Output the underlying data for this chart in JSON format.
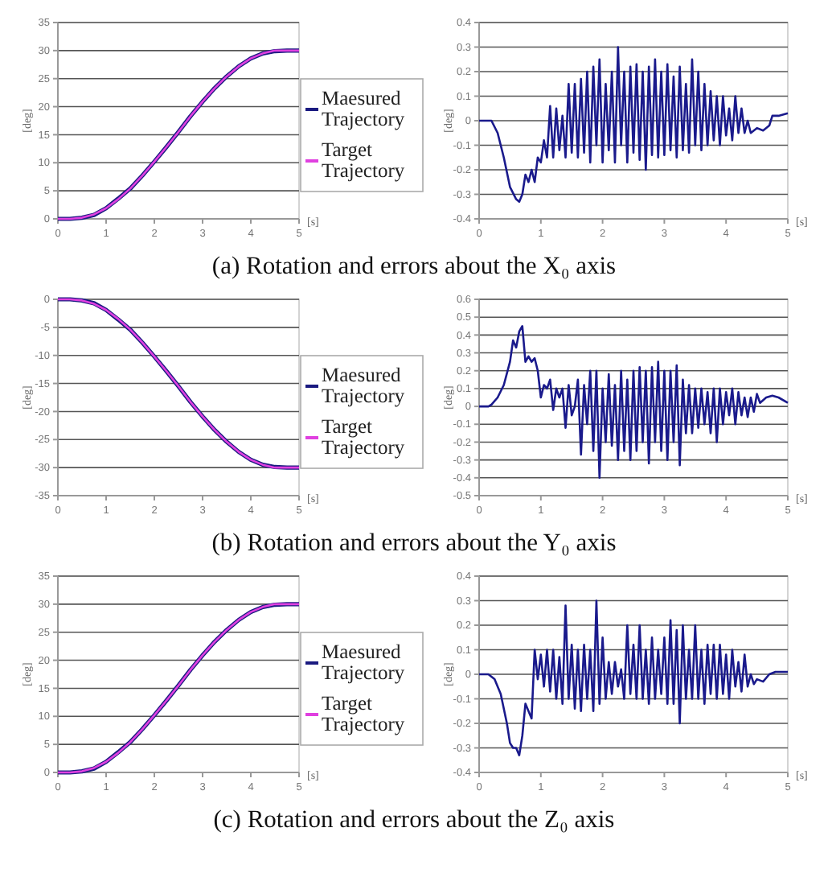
{
  "chart_data": [
    {
      "type": "line",
      "xlabel": "[s]",
      "ylabel": "[deg]",
      "xlim": [
        0,
        5
      ],
      "xticks": [
        0,
        1,
        2,
        3,
        4,
        5
      ],
      "ylim": [
        0,
        35
      ],
      "yticks": [
        0,
        5,
        10,
        15,
        20,
        25,
        30,
        35
      ],
      "grid": "y",
      "legend": "right",
      "annotations": [
        "(a) Rotation and errors about the X₀ axis"
      ],
      "x": [
        0,
        0.25,
        0.5,
        0.75,
        1,
        1.25,
        1.5,
        1.75,
        2,
        2.25,
        2.5,
        2.75,
        3,
        3.25,
        3.5,
        3.75,
        4,
        4.25,
        4.5,
        4.75,
        5
      ],
      "series": [
        {
          "name": "Maesured Trajectory",
          "color": "#1a1a80",
          "values": [
            0,
            0,
            0.2,
            0.7,
            1.9,
            3.6,
            5.4,
            7.7,
            10.2,
            12.8,
            15.5,
            18.3,
            20.9,
            23.3,
            25.4,
            27.2,
            28.6,
            29.5,
            29.9,
            30,
            30
          ]
        },
        {
          "name": "Target Trajectory",
          "color": "#e040e0",
          "values": [
            0,
            0,
            0.2,
            0.8,
            1.9,
            3.5,
            5.4,
            7.7,
            10.2,
            12.8,
            15.5,
            18.3,
            20.9,
            23.3,
            25.4,
            27.2,
            28.6,
            29.5,
            30,
            30,
            30
          ]
        }
      ]
    },
    {
      "type": "line",
      "xlabel": "[s]",
      "ylabel": "[deg]",
      "xlim": [
        0,
        5
      ],
      "xticks": [
        0,
        1,
        2,
        3,
        4,
        5
      ],
      "ylim": [
        -0.4,
        0.4
      ],
      "yticks": [
        -0.4,
        -0.3,
        -0.2,
        -0.1,
        0,
        0.1,
        0.2,
        0.3,
        0.4
      ],
      "grid": "y",
      "series": [
        {
          "color": "#1a1a8c",
          "x": [
            0,
            0.2,
            0.3,
            0.4,
            0.5,
            0.6,
            0.65,
            0.7,
            0.75,
            0.8,
            0.85,
            0.9,
            0.95,
            1,
            1.05,
            1.1,
            1.15,
            1.2,
            1.25,
            1.3,
            1.35,
            1.4,
            1.45,
            1.5,
            1.55,
            1.6,
            1.65,
            1.7,
            1.75,
            1.8,
            1.85,
            1.9,
            1.95,
            2,
            2.05,
            2.1,
            2.15,
            2.2,
            2.25,
            2.3,
            2.35,
            2.4,
            2.45,
            2.5,
            2.55,
            2.6,
            2.65,
            2.7,
            2.75,
            2.8,
            2.85,
            2.9,
            2.95,
            3,
            3.05,
            3.1,
            3.15,
            3.2,
            3.25,
            3.3,
            3.35,
            3.4,
            3.45,
            3.5,
            3.55,
            3.6,
            3.65,
            3.7,
            3.75,
            3.8,
            3.85,
            3.9,
            3.95,
            4,
            4.05,
            4.1,
            4.15,
            4.2,
            4.25,
            4.3,
            4.35,
            4.4,
            4.5,
            4.6,
            4.7,
            4.75,
            4.85,
            5
          ],
          "values": [
            0,
            0,
            -0.05,
            -0.15,
            -0.27,
            -0.32,
            -0.33,
            -0.3,
            -0.22,
            -0.25,
            -0.2,
            -0.25,
            -0.15,
            -0.17,
            -0.08,
            -0.15,
            0.06,
            -0.15,
            0.05,
            -0.12,
            0.02,
            -0.15,
            0.15,
            -0.13,
            0.15,
            -0.15,
            0.17,
            -0.13,
            0.2,
            -0.17,
            0.22,
            -0.1,
            0.25,
            -0.17,
            0.15,
            -0.12,
            0.2,
            -0.17,
            0.3,
            -0.1,
            0.2,
            -0.17,
            0.22,
            -0.13,
            0.23,
            -0.16,
            0.2,
            -0.2,
            0.22,
            -0.14,
            0.25,
            -0.15,
            0.2,
            -0.14,
            0.23,
            -0.12,
            0.18,
            -0.15,
            0.22,
            -0.12,
            0.15,
            -0.13,
            0.25,
            -0.1,
            0.2,
            -0.12,
            0.15,
            -0.1,
            0.12,
            -0.08,
            0.1,
            -0.1,
            0.1,
            -0.06,
            0.05,
            -0.08,
            0.1,
            -0.05,
            0.05,
            -0.05,
            0,
            -0.05,
            -0.03,
            -0.04,
            -0.02,
            0.02,
            0.02,
            0.03
          ]
        }
      ]
    },
    {
      "type": "line",
      "xlabel": "[s]",
      "ylabel": "[deg]",
      "xlim": [
        0,
        5
      ],
      "xticks": [
        0,
        1,
        2,
        3,
        4,
        5
      ],
      "ylim": [
        -35,
        0
      ],
      "yticks": [
        -35,
        -30,
        -25,
        -20,
        -15,
        -10,
        -5,
        0
      ],
      "grid": "y",
      "legend": "right",
      "annotations": [
        "(b) Rotation and errors about the Y₀ axis"
      ],
      "x": [
        0,
        0.25,
        0.5,
        0.75,
        1,
        1.25,
        1.5,
        1.75,
        2,
        2.25,
        2.5,
        2.75,
        3,
        3.25,
        3.5,
        3.75,
        4,
        4.25,
        4.5,
        4.75,
        5
      ],
      "series": [
        {
          "name": "Maesured Trajectory",
          "color": "#1a1a80",
          "values": [
            0,
            0,
            -0.2,
            -0.7,
            -1.9,
            -3.6,
            -5.4,
            -7.7,
            -10.2,
            -12.8,
            -15.5,
            -18.3,
            -20.9,
            -23.3,
            -25.4,
            -27.2,
            -28.6,
            -29.5,
            -29.9,
            -30,
            -30
          ]
        },
        {
          "name": "Target Trajectory",
          "color": "#e040e0",
          "values": [
            0,
            0,
            -0.2,
            -0.8,
            -1.9,
            -3.5,
            -5.4,
            -7.7,
            -10.2,
            -12.8,
            -15.5,
            -18.3,
            -20.9,
            -23.3,
            -25.4,
            -27.2,
            -28.6,
            -29.5,
            -30,
            -30,
            -30
          ]
        }
      ]
    },
    {
      "type": "line",
      "xlabel": "[s]",
      "ylabel": "[deg]",
      "xlim": [
        0,
        5
      ],
      "xticks": [
        0,
        1,
        2,
        3,
        4,
        5
      ],
      "ylim": [
        -0.5,
        0.6
      ],
      "yticks": [
        -0.5,
        -0.4,
        -0.3,
        -0.2,
        -0.1,
        0,
        0.1,
        0.2,
        0.3,
        0.4,
        0.5,
        0.6
      ],
      "grid": "y",
      "series": [
        {
          "color": "#1a1a8c",
          "x": [
            0,
            0.15,
            0.2,
            0.3,
            0.4,
            0.5,
            0.55,
            0.6,
            0.65,
            0.7,
            0.75,
            0.8,
            0.85,
            0.9,
            0.95,
            1,
            1.05,
            1.1,
            1.15,
            1.2,
            1.25,
            1.3,
            1.35,
            1.4,
            1.45,
            1.5,
            1.55,
            1.6,
            1.65,
            1.7,
            1.75,
            1.8,
            1.85,
            1.9,
            1.95,
            2,
            2.05,
            2.1,
            2.15,
            2.2,
            2.25,
            2.3,
            2.35,
            2.4,
            2.45,
            2.5,
            2.55,
            2.6,
            2.65,
            2.7,
            2.75,
            2.8,
            2.85,
            2.9,
            2.95,
            3,
            3.05,
            3.1,
            3.15,
            3.2,
            3.25,
            3.3,
            3.35,
            3.4,
            3.45,
            3.5,
            3.55,
            3.6,
            3.65,
            3.7,
            3.75,
            3.8,
            3.85,
            3.9,
            3.95,
            4,
            4.05,
            4.1,
            4.15,
            4.2,
            4.25,
            4.3,
            4.35,
            4.4,
            4.45,
            4.5,
            4.55,
            4.65,
            4.75,
            4.85,
            5
          ],
          "values": [
            0,
            0,
            0.01,
            0.05,
            0.12,
            0.25,
            0.37,
            0.33,
            0.42,
            0.45,
            0.25,
            0.28,
            0.25,
            0.27,
            0.2,
            0.05,
            0.12,
            0.1,
            0.15,
            -0.02,
            0.1,
            0.05,
            0.1,
            -0.12,
            0.12,
            -0.05,
            0,
            0.15,
            -0.27,
            0.12,
            -0.1,
            0.2,
            -0.25,
            0.2,
            -0.4,
            0.1,
            -0.2,
            0.18,
            -0.22,
            0.12,
            -0.3,
            0.2,
            -0.25,
            0.15,
            -0.3,
            0.2,
            -0.25,
            0.22,
            -0.2,
            0.2,
            -0.32,
            0.22,
            -0.2,
            0.25,
            -0.25,
            0.2,
            -0.3,
            0.2,
            -0.2,
            0.23,
            -0.33,
            0.15,
            -0.15,
            0.12,
            -0.15,
            0.1,
            -0.12,
            0.1,
            -0.1,
            0.08,
            -0.15,
            0.1,
            -0.2,
            0.1,
            -0.1,
            0.08,
            -0.05,
            0.1,
            -0.1,
            0.08,
            -0.05,
            0.05,
            -0.06,
            0.05,
            -0.03,
            0.07,
            0.02,
            0.05,
            0.06,
            0.05,
            0.02
          ]
        }
      ]
    },
    {
      "type": "line",
      "xlabel": "[s]",
      "ylabel": "[deg]",
      "xlim": [
        0,
        5
      ],
      "xticks": [
        0,
        1,
        2,
        3,
        4,
        5
      ],
      "ylim": [
        0,
        35
      ],
      "yticks": [
        0,
        5,
        10,
        15,
        20,
        25,
        30,
        35
      ],
      "grid": "y",
      "legend": "right",
      "annotations": [
        "(c) Rotation and errors about the Z₀ axis"
      ],
      "x": [
        0,
        0.25,
        0.5,
        0.75,
        1,
        1.25,
        1.5,
        1.75,
        2,
        2.25,
        2.5,
        2.75,
        3,
        3.25,
        3.5,
        3.75,
        4,
        4.25,
        4.5,
        4.75,
        5
      ],
      "series": [
        {
          "name": "Maesured Trajectory",
          "color": "#1a1a80",
          "values": [
            0,
            0,
            0.2,
            0.7,
            1.9,
            3.6,
            5.4,
            7.7,
            10.2,
            12.8,
            15.5,
            18.3,
            20.9,
            23.3,
            25.4,
            27.2,
            28.6,
            29.5,
            29.9,
            30,
            30
          ]
        },
        {
          "name": "Target Trajectory",
          "color": "#e040e0",
          "values": [
            0,
            0,
            0.2,
            0.8,
            1.9,
            3.5,
            5.4,
            7.7,
            10.2,
            12.8,
            15.5,
            18.3,
            20.9,
            23.3,
            25.4,
            27.2,
            28.6,
            29.5,
            30,
            30,
            30
          ]
        }
      ]
    },
    {
      "type": "line",
      "xlabel": "[s]",
      "ylabel": "[deg]",
      "xlim": [
        0,
        5
      ],
      "xticks": [
        0,
        1,
        2,
        3,
        4,
        5
      ],
      "ylim": [
        -0.4,
        0.4
      ],
      "yticks": [
        -0.4,
        -0.3,
        -0.2,
        -0.1,
        0,
        0.1,
        0.2,
        0.3,
        0.4
      ],
      "grid": "y",
      "series": [
        {
          "color": "#1a1a8c",
          "x": [
            0,
            0.15,
            0.25,
            0.35,
            0.45,
            0.5,
            0.55,
            0.6,
            0.65,
            0.7,
            0.75,
            0.8,
            0.85,
            0.9,
            0.95,
            1,
            1.05,
            1.1,
            1.15,
            1.2,
            1.25,
            1.3,
            1.35,
            1.4,
            1.45,
            1.5,
            1.55,
            1.6,
            1.65,
            1.7,
            1.75,
            1.8,
            1.85,
            1.9,
            1.95,
            2,
            2.05,
            2.1,
            2.15,
            2.2,
            2.25,
            2.3,
            2.35,
            2.4,
            2.45,
            2.5,
            2.55,
            2.6,
            2.65,
            2.7,
            2.75,
            2.8,
            2.85,
            2.9,
            2.95,
            3,
            3.05,
            3.1,
            3.15,
            3.2,
            3.25,
            3.3,
            3.35,
            3.4,
            3.45,
            3.5,
            3.55,
            3.6,
            3.65,
            3.7,
            3.75,
            3.8,
            3.85,
            3.9,
            3.95,
            4,
            4.05,
            4.1,
            4.15,
            4.2,
            4.25,
            4.3,
            4.35,
            4.4,
            4.45,
            4.5,
            4.6,
            4.7,
            4.8,
            5
          ],
          "values": [
            0,
            0,
            -0.02,
            -0.08,
            -0.2,
            -0.28,
            -0.3,
            -0.3,
            -0.33,
            -0.25,
            -0.12,
            -0.15,
            -0.18,
            0.1,
            -0.02,
            0.08,
            -0.05,
            0.1,
            -0.07,
            0.1,
            -0.1,
            0.07,
            -0.12,
            0.28,
            -0.1,
            0.12,
            -0.14,
            0.1,
            -0.15,
            0.12,
            -0.1,
            0.1,
            -0.15,
            0.3,
            -0.12,
            0.15,
            -0.1,
            0.05,
            -0.08,
            0.05,
            -0.05,
            0.02,
            -0.1,
            0.2,
            -0.08,
            0.12,
            -0.1,
            0.2,
            -0.1,
            0.1,
            -0.12,
            0.15,
            -0.1,
            0.1,
            -0.08,
            0.15,
            -0.12,
            0.22,
            -0.12,
            0.18,
            -0.2,
            0.2,
            -0.1,
            0.1,
            -0.1,
            0.2,
            -0.1,
            0.1,
            -0.12,
            0.12,
            -0.08,
            0.12,
            -0.1,
            0.12,
            -0.08,
            0.08,
            -0.1,
            0.1,
            -0.05,
            0.05,
            -0.07,
            0.08,
            -0.05,
            0,
            -0.04,
            -0.02,
            -0.03,
            0,
            0.01,
            0.01
          ]
        }
      ]
    }
  ]
}
